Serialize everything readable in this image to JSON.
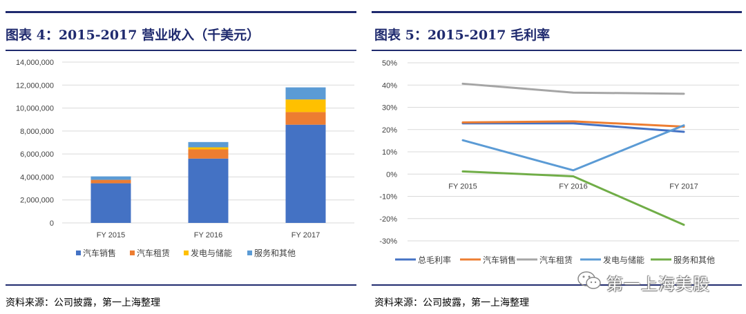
{
  "left_panel": {
    "title": "图表 4：2015-2017 营业收入（千美元）",
    "source": "资料来源：公司披露，第一上海整理"
  },
  "right_panel": {
    "title": "图表 5：2015-2017 毛利率",
    "source": "资料来源：公司披露，第一上海整理"
  },
  "watermark": {
    "text": "第一上海美股"
  },
  "colors": {
    "blue": "#4472c4",
    "orange": "#ed7d31",
    "gray": "#a5a5a5",
    "yellow": "#ffc000",
    "lightblue": "#5b9bd5",
    "green": "#70ad47",
    "frame": "#1f2a6e"
  },
  "chart_data": [
    {
      "type": "bar",
      "stacked": true,
      "title": "2015-2017 营业收入（千美元）",
      "categories": [
        "FY 2015",
        "FY 2016",
        "FY 2017"
      ],
      "ylim": [
        0,
        14000000
      ],
      "yticks": [
        0,
        2000000,
        4000000,
        6000000,
        8000000,
        10000000,
        12000000,
        14000000
      ],
      "ytick_labels": [
        "0",
        "2,000,000",
        "4,000,000",
        "6,000,000",
        "8,000,000",
        "10,000,000",
        "12,000,000",
        "14,000,000"
      ],
      "legend_position": "bottom",
      "series": [
        {
          "name": "汽车销售",
          "color": "#4472c4",
          "values": [
            3450000,
            5600000,
            8550000
          ]
        },
        {
          "name": "汽车租赁",
          "color": "#ed7d31",
          "values": [
            300000,
            800000,
            1100000
          ]
        },
        {
          "name": "发电与储能",
          "color": "#ffc000",
          "values": [
            0,
            180000,
            1100000
          ]
        },
        {
          "name": "服务和其他",
          "color": "#5b9bd5",
          "values": [
            300000,
            460000,
            1050000
          ]
        }
      ]
    },
    {
      "type": "line",
      "title": "2015-2017 毛利率",
      "categories": [
        "FY 2015",
        "FY 2016",
        "FY 2017"
      ],
      "ylim": [
        -30,
        50
      ],
      "yticks": [
        -30,
        -20,
        -10,
        0,
        10,
        20,
        30,
        40,
        50
      ],
      "ytick_labels": [
        "-30%",
        "-20%",
        "-10%",
        "0%",
        "10%",
        "20%",
        "30%",
        "40%",
        "50%"
      ],
      "legend_position": "bottom",
      "series": [
        {
          "name": "总毛利率",
          "color": "#4472c4",
          "values": [
            22.8,
            22.8,
            19.0
          ]
        },
        {
          "name": "汽车销售",
          "color": "#ed7d31",
          "values": [
            23.2,
            23.7,
            21.3
          ]
        },
        {
          "name": "汽车租赁",
          "color": "#a5a5a5",
          "values": [
            40.6,
            36.6,
            36.1
          ]
        },
        {
          "name": "发电与储能",
          "color": "#5b9bd5",
          "values": [
            15.2,
            1.7,
            21.9
          ]
        },
        {
          "name": "服务和其他",
          "color": "#70ad47",
          "values": [
            1.2,
            -1.0,
            -22.8
          ]
        }
      ]
    }
  ]
}
